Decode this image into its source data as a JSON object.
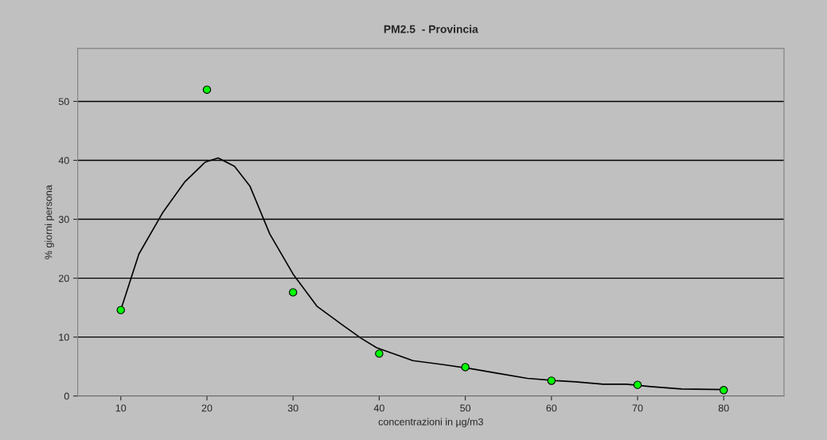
{
  "chart_data": {
    "type": "scatter",
    "title": "PM2.5  - Provincia",
    "xlabel": "concentrazioni in µg/m3",
    "ylabel": "% giorni persona",
    "xlim": [
      5,
      87
    ],
    "ylim": [
      0,
      59
    ],
    "xticks": [
      10,
      20,
      30,
      40,
      50,
      60,
      70,
      80
    ],
    "yticks": [
      0,
      10,
      20,
      30,
      40,
      50
    ],
    "grid": "y",
    "legend": false,
    "series": [
      {
        "color": "#00ff00",
        "marker": "circle",
        "x": [
          10,
          20,
          30,
          40,
          50,
          60,
          70,
          80
        ],
        "values": [
          14.6,
          52,
          17.6,
          7.2,
          4.9,
          2.6,
          1.9,
          1.0
        ]
      },
      {
        "type": "line",
        "color": "#000000",
        "marker": "none",
        "x": [
          10,
          12.1,
          14.9,
          17.4,
          19.8,
          21.3,
          23.2,
          25.0,
          27.3,
          30.0,
          32.8,
          35.6,
          37.9,
          39.7,
          43.9,
          47.6,
          50.8,
          53.6,
          57.2,
          60.5,
          62.8,
          66.0,
          68.7,
          71.5,
          75.1,
          80
        ],
        "values": [
          14.6,
          24.1,
          31.2,
          36.3,
          39.7,
          40.4,
          39.0,
          35.6,
          27.5,
          20.7,
          15.2,
          12.2,
          9.8,
          8.2,
          6.0,
          5.3,
          4.6,
          3.9,
          3.0,
          2.6,
          2.4,
          2.0,
          2.0,
          1.6,
          1.2,
          1.1
        ]
      }
    ]
  }
}
